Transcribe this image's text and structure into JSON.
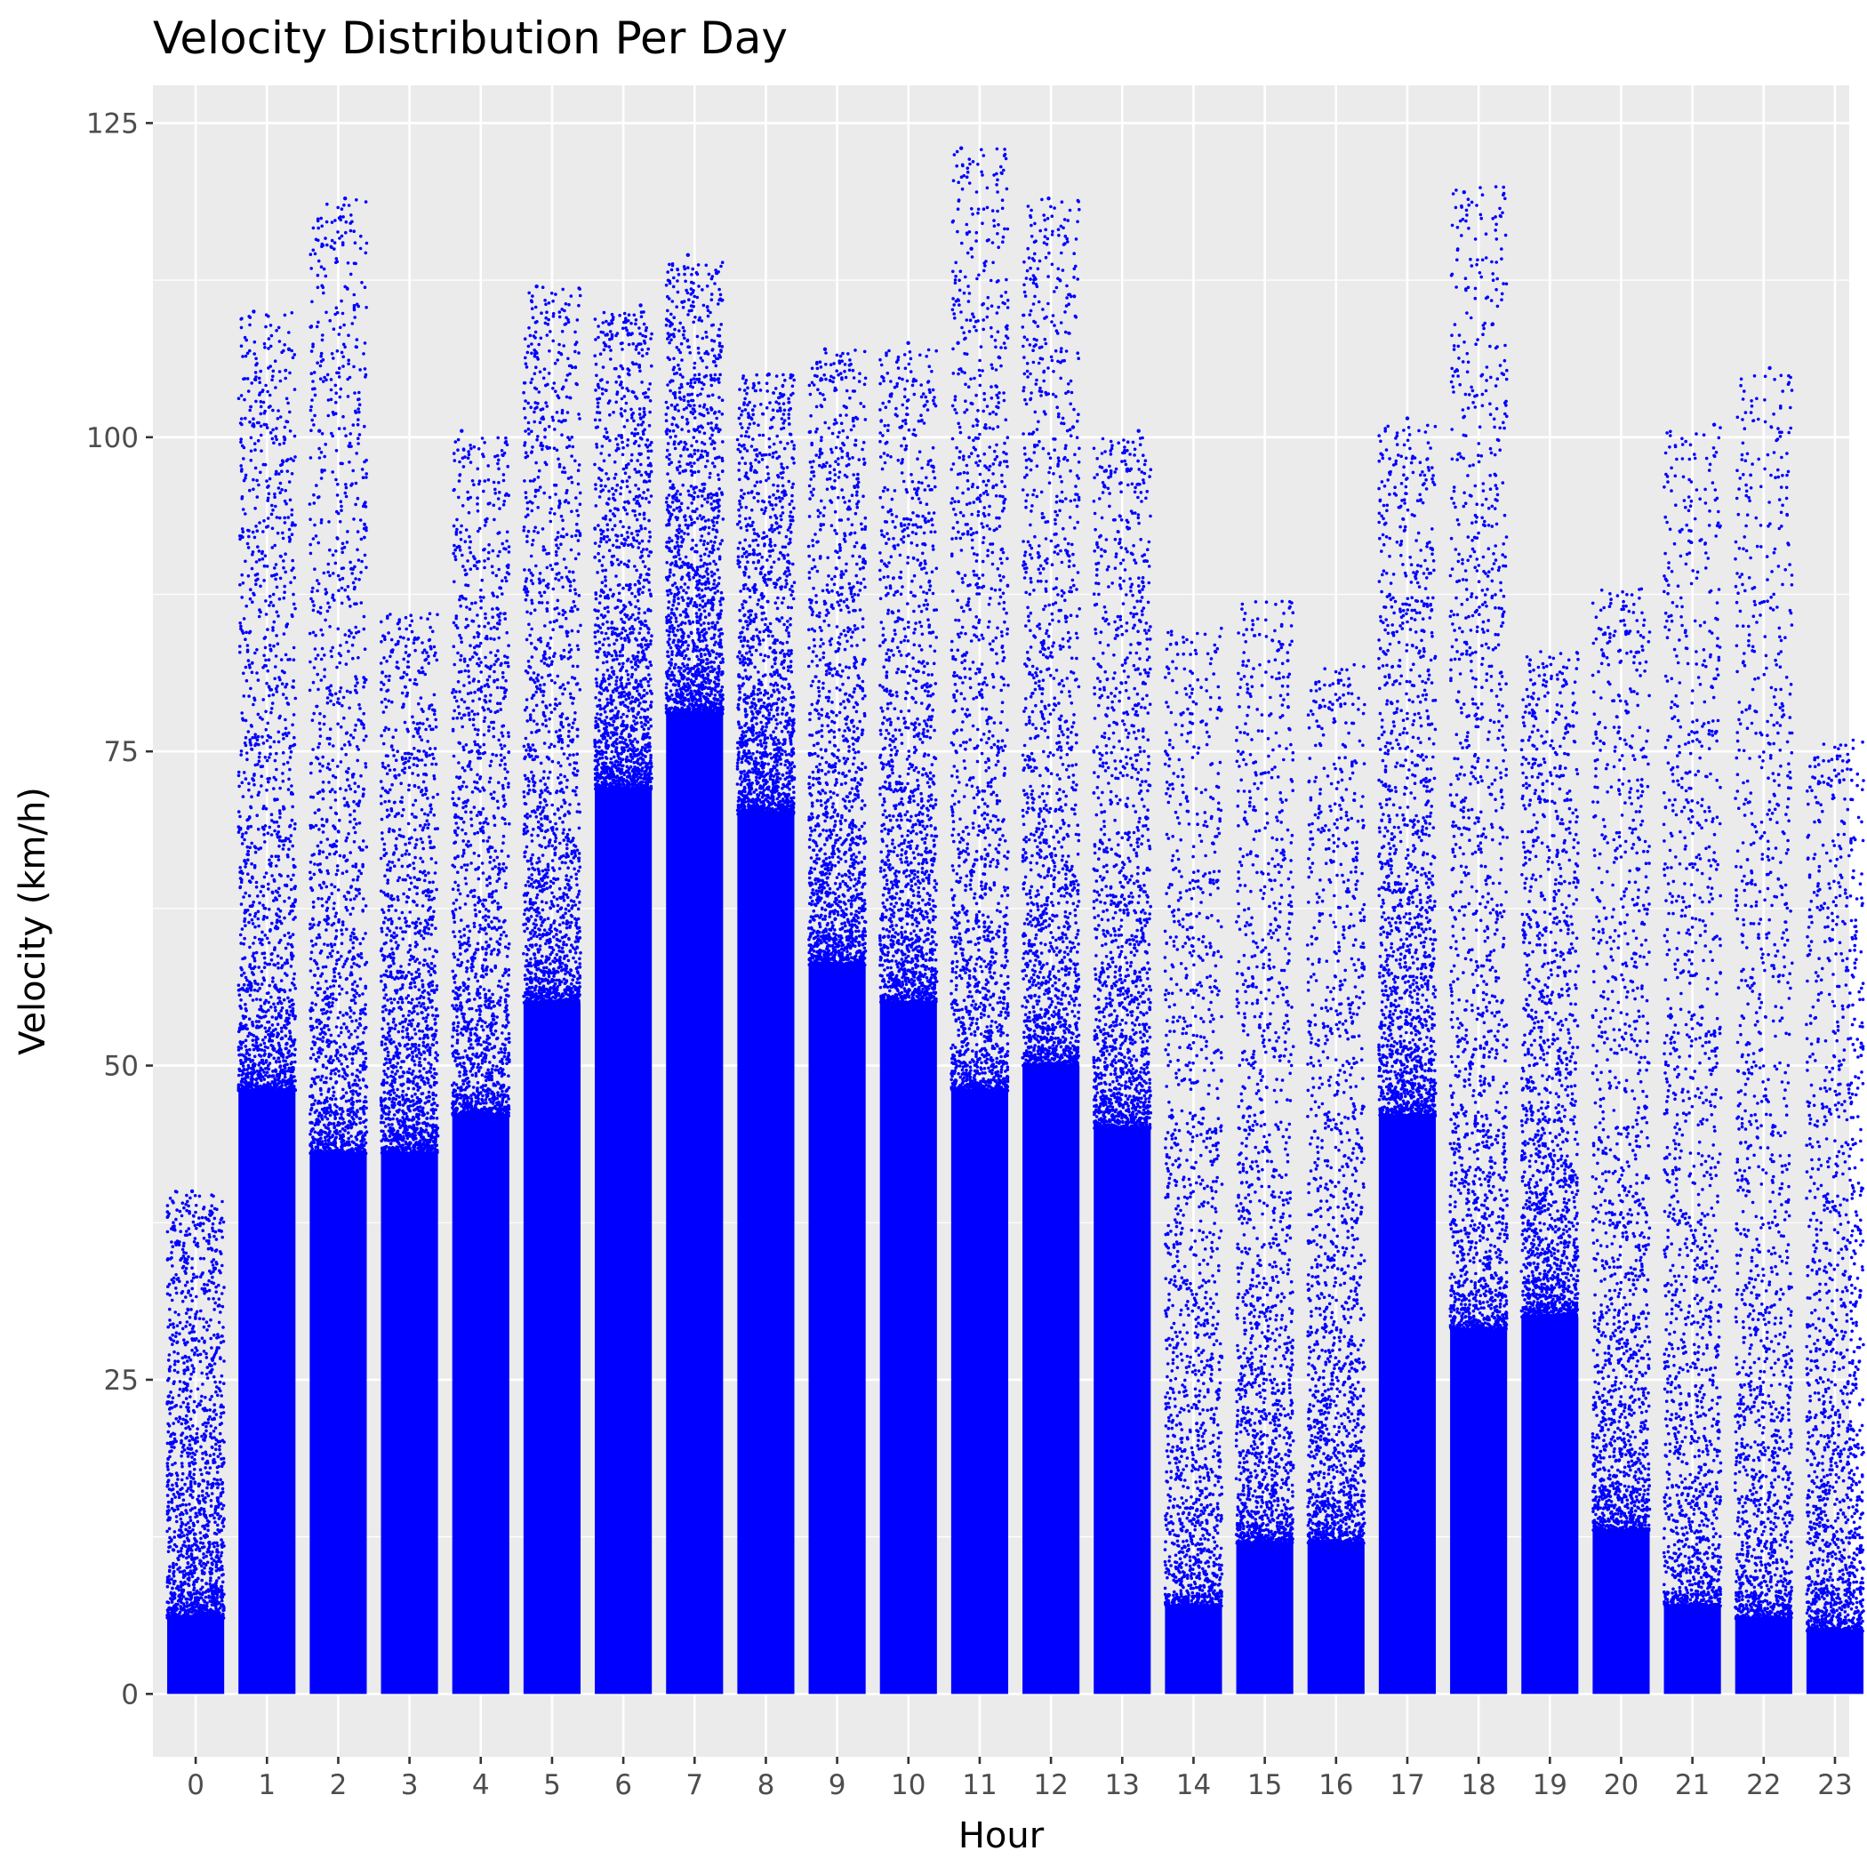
{
  "chart_data": {
    "type": "scatter",
    "title": "Velocity Distribution Per Day",
    "xlabel": "Hour",
    "ylabel": "Velocity (km/h)",
    "categories": [
      "0",
      "1",
      "2",
      "3",
      "4",
      "5",
      "6",
      "7",
      "8",
      "9",
      "10",
      "11",
      "12",
      "13",
      "14",
      "15",
      "16",
      "17",
      "18",
      "19",
      "20",
      "21",
      "22",
      "23"
    ],
    "ylim": [
      -5,
      128
    ],
    "yticks": [
      0,
      25,
      50,
      75,
      100,
      125
    ],
    "grid": true,
    "legend": "none",
    "point_color": "#0000ff",
    "panel_background": "#ebebeb",
    "series": [
      {
        "dense_band_max": [
          6,
          48,
          43,
          43,
          46,
          55,
          72,
          78,
          70,
          58,
          55,
          48,
          50,
          45,
          7,
          12,
          12,
          46,
          29,
          30,
          13,
          7,
          6,
          5
        ],
        "max_value": [
          40,
          110,
          119,
          86,
          100,
          112,
          110,
          114,
          105,
          107,
          107,
          123,
          119,
          100,
          85,
          87,
          82,
          101,
          120,
          83,
          88,
          101,
          105,
          76
        ],
        "outliers": [
          {
            "x": "0",
            "y": 40
          },
          {
            "x": "0",
            "y": 19.5
          },
          {
            "x": "1",
            "y": 110
          },
          {
            "x": "1",
            "y": 107
          },
          {
            "x": "2",
            "y": 119
          },
          {
            "x": "2",
            "y": 100.5
          },
          {
            "x": "4",
            "y": 100.5
          },
          {
            "x": "5",
            "y": 112
          },
          {
            "x": "6",
            "y": 110.5
          },
          {
            "x": "6",
            "y": 109
          },
          {
            "x": "7",
            "y": 114.5
          },
          {
            "x": "7",
            "y": 109
          },
          {
            "x": "8",
            "y": 105
          },
          {
            "x": "9",
            "y": 107
          },
          {
            "x": "10",
            "y": 107.5
          },
          {
            "x": "11",
            "y": 123
          },
          {
            "x": "11",
            "y": 115
          },
          {
            "x": "11",
            "y": 107.5
          },
          {
            "x": "12",
            "y": 119
          },
          {
            "x": "12",
            "y": 100.8
          },
          {
            "x": "13",
            "y": 100.5
          },
          {
            "x": "17",
            "y": 101.5
          },
          {
            "x": "18",
            "y": 119.5
          },
          {
            "x": "18",
            "y": 109
          },
          {
            "x": "21",
            "y": 101
          },
          {
            "x": "22",
            "y": 105.5
          }
        ]
      }
    ]
  }
}
